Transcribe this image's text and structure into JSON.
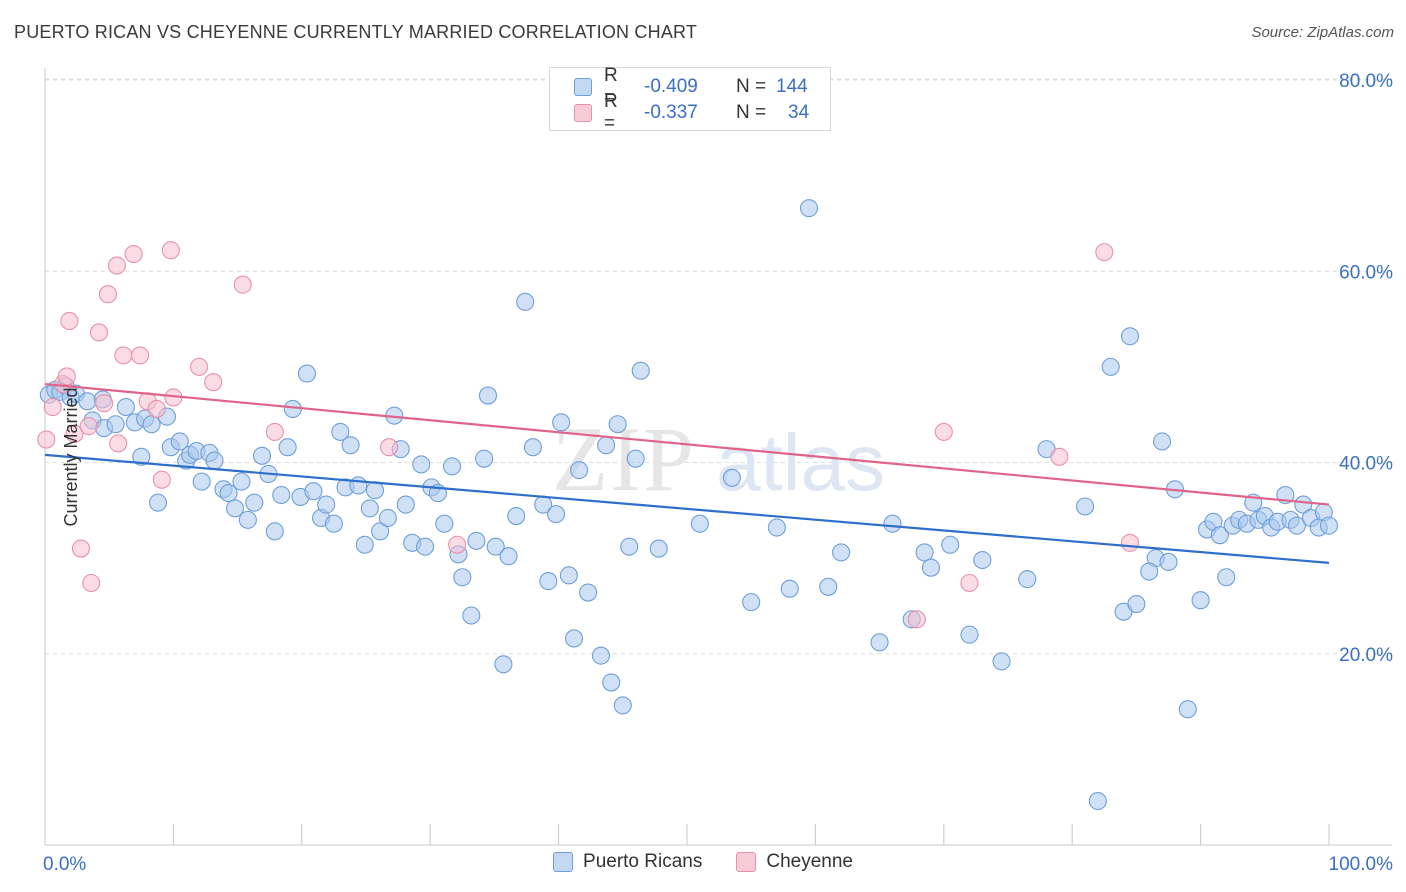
{
  "header": {
    "title": "PUERTO RICAN VS CHEYENNE CURRENTLY MARRIED CORRELATION CHART",
    "source": "Source: ZipAtlas.com"
  },
  "watermark": {
    "zip": "ZIP",
    "atlas": "atlas"
  },
  "legend_top": {
    "rows": [
      {
        "r_label": "R =",
        "r_value": "-0.409",
        "n_label": "N =",
        "n_value": "144"
      },
      {
        "r_label": "R =",
        "r_value": "-0.337",
        "n_label": "N =",
        "n_value": "34"
      }
    ]
  },
  "colors": {
    "blue_fill": "#aac8ee",
    "blue_stroke": "#6f9fd8",
    "blue_line": "#2f6fcc",
    "pink_fill": "#f7bfd0",
    "pink_stroke": "#e890ac",
    "pink_line": "#e0648a",
    "tick_text": "#3a6fc4",
    "grid": "#dddddd"
  },
  "chart_data": {
    "type": "scatter",
    "title": "PUERTO RICAN VS CHEYENNE CURRENTLY MARRIED CORRELATION CHART",
    "xlabel": "",
    "ylabel": "Currently Married",
    "xlim": [
      0,
      100
    ],
    "ylim": [
      0,
      82
    ],
    "x_tick_labels": [
      "0.0%",
      "100.0%"
    ],
    "y_ticks": [
      20,
      40,
      60,
      80
    ],
    "y_tick_labels": [
      "20.0%",
      "40.0%",
      "60.0%",
      "80.0%"
    ],
    "grid": true,
    "legend_placement": "bottom",
    "series": [
      {
        "name": "Puerto Ricans",
        "r": -0.409,
        "n": 144,
        "trend": {
          "x": [
            0,
            100
          ],
          "y": [
            40.8,
            29.5
          ]
        },
        "points": [
          [
            0.3,
            47.1
          ],
          [
            0.8,
            47.6
          ],
          [
            1.2,
            47.4
          ],
          [
            1.6,
            48.0
          ],
          [
            2.0,
            46.8
          ],
          [
            2.4,
            47.2
          ],
          [
            3.3,
            46.4
          ],
          [
            3.7,
            44.4
          ],
          [
            4.5,
            46.6
          ],
          [
            4.6,
            43.6
          ],
          [
            5.5,
            44.0
          ],
          [
            6.3,
            45.8
          ],
          [
            7.0,
            44.2
          ],
          [
            7.5,
            40.6
          ],
          [
            7.8,
            44.6
          ],
          [
            8.3,
            44.0
          ],
          [
            8.8,
            35.8
          ],
          [
            9.5,
            44.8
          ],
          [
            9.8,
            41.6
          ],
          [
            10.5,
            42.2
          ],
          [
            11.0,
            40.2
          ],
          [
            11.3,
            40.8
          ],
          [
            11.8,
            41.2
          ],
          [
            12.2,
            38.0
          ],
          [
            12.8,
            41.0
          ],
          [
            13.2,
            40.2
          ],
          [
            13.9,
            37.2
          ],
          [
            14.3,
            36.8
          ],
          [
            14.8,
            35.2
          ],
          [
            15.3,
            38.0
          ],
          [
            15.8,
            34.0
          ],
          [
            16.3,
            35.8
          ],
          [
            16.9,
            40.7
          ],
          [
            17.4,
            38.8
          ],
          [
            17.9,
            32.8
          ],
          [
            18.4,
            36.6
          ],
          [
            18.9,
            41.6
          ],
          [
            19.3,
            45.6
          ],
          [
            19.9,
            36.4
          ],
          [
            20.4,
            49.3
          ],
          [
            20.9,
            37.0
          ],
          [
            21.5,
            34.2
          ],
          [
            21.9,
            35.6
          ],
          [
            22.5,
            33.6
          ],
          [
            23.0,
            43.2
          ],
          [
            23.4,
            37.4
          ],
          [
            23.8,
            41.8
          ],
          [
            24.4,
            37.6
          ],
          [
            24.9,
            31.4
          ],
          [
            25.3,
            35.2
          ],
          [
            25.7,
            37.1
          ],
          [
            26.1,
            32.8
          ],
          [
            26.7,
            34.2
          ],
          [
            27.2,
            44.9
          ],
          [
            27.7,
            41.4
          ],
          [
            28.1,
            35.6
          ],
          [
            28.6,
            31.6
          ],
          [
            29.3,
            39.8
          ],
          [
            29.6,
            31.2
          ],
          [
            30.1,
            37.4
          ],
          [
            30.6,
            36.8
          ],
          [
            31.1,
            33.6
          ],
          [
            31.7,
            39.6
          ],
          [
            32.2,
            30.4
          ],
          [
            32.5,
            28.0
          ],
          [
            33.2,
            24.0
          ],
          [
            33.6,
            31.8
          ],
          [
            34.2,
            40.4
          ],
          [
            34.5,
            47.0
          ],
          [
            35.1,
            31.2
          ],
          [
            35.7,
            18.9
          ],
          [
            36.1,
            30.2
          ],
          [
            36.7,
            34.4
          ],
          [
            37.4,
            56.8
          ],
          [
            38.0,
            41.6
          ],
          [
            38.8,
            35.6
          ],
          [
            39.2,
            27.6
          ],
          [
            39.8,
            34.6
          ],
          [
            40.2,
            44.2
          ],
          [
            40.8,
            28.2
          ],
          [
            41.2,
            21.6
          ],
          [
            41.6,
            39.2
          ],
          [
            42.3,
            26.4
          ],
          [
            43.3,
            19.8
          ],
          [
            43.7,
            41.8
          ],
          [
            44.1,
            17.0
          ],
          [
            44.6,
            44.0
          ],
          [
            45.0,
            14.6
          ],
          [
            45.5,
            31.2
          ],
          [
            46.0,
            40.4
          ],
          [
            46.4,
            49.6
          ],
          [
            47.8,
            31.0
          ],
          [
            51.0,
            33.6
          ],
          [
            53.5,
            38.4
          ],
          [
            55.0,
            25.4
          ],
          [
            57.0,
            33.2
          ],
          [
            58.0,
            26.8
          ],
          [
            59.5,
            66.6
          ],
          [
            61.0,
            27.0
          ],
          [
            62.0,
            30.6
          ],
          [
            65.0,
            21.2
          ],
          [
            66.0,
            33.6
          ],
          [
            67.5,
            23.6
          ],
          [
            68.5,
            30.6
          ],
          [
            69.0,
            29.0
          ],
          [
            70.5,
            31.4
          ],
          [
            72.0,
            22.0
          ],
          [
            73.0,
            29.8
          ],
          [
            74.5,
            19.2
          ],
          [
            76.5,
            27.8
          ],
          [
            78.0,
            41.4
          ],
          [
            81.0,
            35.4
          ],
          [
            82.0,
            4.6
          ],
          [
            83.0,
            50.0
          ],
          [
            84.0,
            24.4
          ],
          [
            84.5,
            53.2
          ],
          [
            85.0,
            25.2
          ],
          [
            86.5,
            30.0
          ],
          [
            86.0,
            28.6
          ],
          [
            87.0,
            42.2
          ],
          [
            87.5,
            29.6
          ],
          [
            88.0,
            37.2
          ],
          [
            89.0,
            14.2
          ],
          [
            90.0,
            25.6
          ],
          [
            90.5,
            33.0
          ],
          [
            91.0,
            33.8
          ],
          [
            91.5,
            32.4
          ],
          [
            92.0,
            28.0
          ],
          [
            92.5,
            33.4
          ],
          [
            93.0,
            34.0
          ],
          [
            93.6,
            33.6
          ],
          [
            94.1,
            35.8
          ],
          [
            94.5,
            34.0
          ],
          [
            95.0,
            34.4
          ],
          [
            95.5,
            33.2
          ],
          [
            96.0,
            33.8
          ],
          [
            96.6,
            36.6
          ],
          [
            97.0,
            34.0
          ],
          [
            97.5,
            33.4
          ],
          [
            98.0,
            35.6
          ],
          [
            98.6,
            34.2
          ],
          [
            99.2,
            33.2
          ],
          [
            99.6,
            34.8
          ],
          [
            100.0,
            33.4
          ]
        ]
      },
      {
        "name": "Cheyenne",
        "r": -0.337,
        "n": 34,
        "trend": {
          "x": [
            0,
            100
          ],
          "y": [
            48.2,
            35.6
          ]
        },
        "points": [
          [
            0.1,
            42.4
          ],
          [
            0.6,
            45.8
          ],
          [
            1.4,
            48.2
          ],
          [
            1.7,
            49.0
          ],
          [
            1.9,
            54.8
          ],
          [
            2.3,
            43.0
          ],
          [
            2.8,
            31.0
          ],
          [
            3.4,
            43.8
          ],
          [
            3.6,
            27.4
          ],
          [
            4.2,
            53.6
          ],
          [
            4.6,
            46.2
          ],
          [
            4.9,
            57.6
          ],
          [
            5.6,
            60.6
          ],
          [
            5.7,
            42.0
          ],
          [
            6.1,
            51.2
          ],
          [
            6.9,
            61.8
          ],
          [
            7.4,
            51.2
          ],
          [
            8.0,
            46.4
          ],
          [
            8.7,
            45.6
          ],
          [
            9.1,
            38.2
          ],
          [
            9.8,
            62.2
          ],
          [
            10.0,
            46.8
          ],
          [
            12.0,
            50.0
          ],
          [
            13.1,
            48.4
          ],
          [
            15.4,
            58.6
          ],
          [
            17.9,
            43.2
          ],
          [
            26.8,
            41.6
          ],
          [
            32.1,
            31.4
          ],
          [
            67.9,
            23.6
          ],
          [
            70.0,
            43.2
          ],
          [
            72.0,
            27.4
          ],
          [
            79.0,
            40.6
          ],
          [
            82.5,
            62.0
          ],
          [
            84.5,
            31.6
          ]
        ]
      }
    ]
  },
  "legend_bottom": {
    "items": [
      {
        "label": "Puerto Ricans"
      },
      {
        "label": "Cheyenne"
      }
    ]
  }
}
